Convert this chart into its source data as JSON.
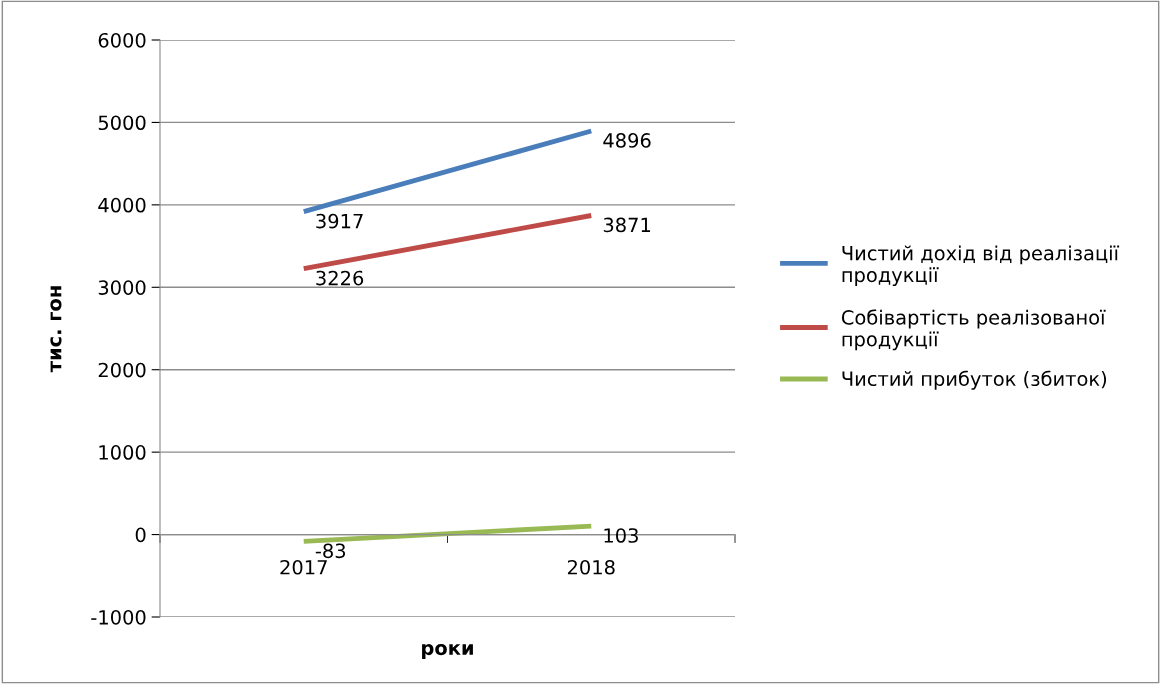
{
  "chart_data": {
    "type": "line",
    "xlabel": "роки",
    "ylabel": "тис. гон",
    "categories": [
      "2017",
      "2018"
    ],
    "series": [
      {
        "name": "Чистий дохід від реалізації продукції",
        "color": "#4a7ebb",
        "values": [
          3917,
          4896
        ]
      },
      {
        "name": "Собівартість реалізованої продукції",
        "color": "#be4b48",
        "values": [
          3226,
          3871
        ]
      },
      {
        "name": "Чистий прибуток (збиток)",
        "color": "#98b954",
        "values": [
          -83,
          103
        ]
      }
    ],
    "ylim": [
      -1000,
      6000
    ],
    "yticks": [
      -1000,
      0,
      1000,
      2000,
      3000,
      4000,
      5000,
      6000
    ],
    "grid": "y",
    "legend": "right",
    "data_labels": true,
    "marker": "none",
    "line_style": "solid"
  }
}
